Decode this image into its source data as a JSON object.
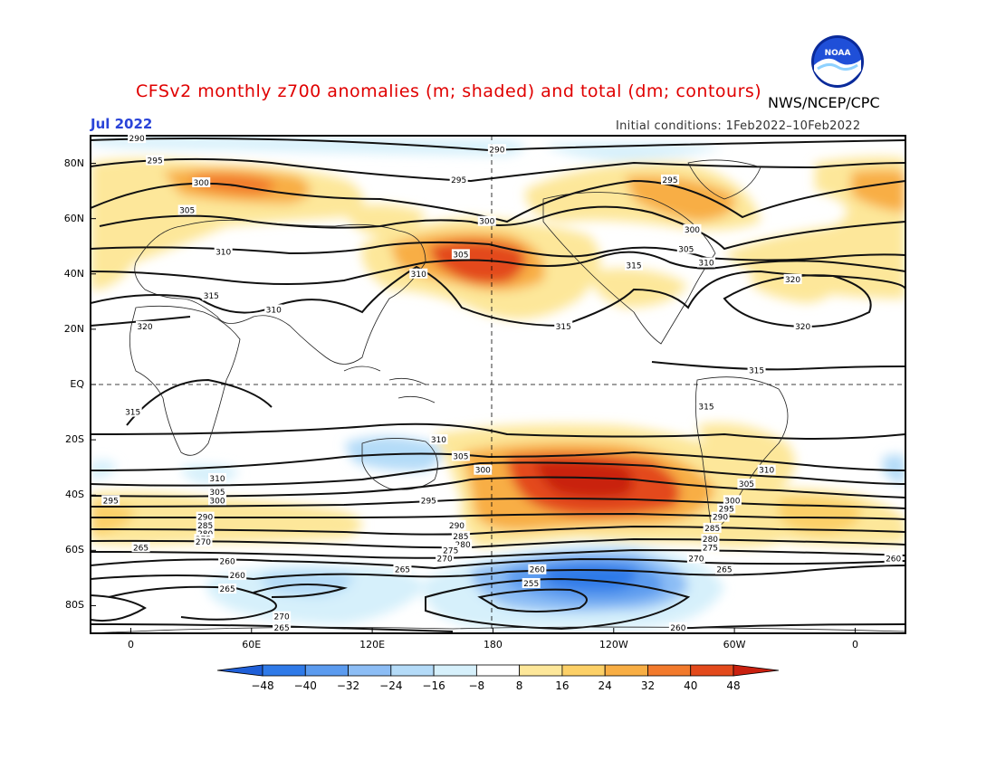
{
  "header": {
    "title": "CFSv2 monthly z700 anomalies (m; shaded) and total (dm; contours)",
    "agency": "NWS/NCEP/CPC",
    "month": "Jul 2022",
    "initial_conditions": "Initial conditions: 1Feb2022–10Feb2022",
    "logo_text": "NOAA"
  },
  "map": {
    "lat_labels": [
      {
        "text": "80N",
        "lat": 80
      },
      {
        "text": "60N",
        "lat": 60
      },
      {
        "text": "40N",
        "lat": 40
      },
      {
        "text": "20N",
        "lat": 20
      },
      {
        "text": "EQ",
        "lat": 0
      },
      {
        "text": "20S",
        "lat": -20
      },
      {
        "text": "40S",
        "lat": -40
      },
      {
        "text": "60S",
        "lat": -60
      },
      {
        "text": "80S",
        "lat": -80
      }
    ],
    "lon_labels": [
      {
        "text": "0",
        "lon": 0
      },
      {
        "text": "60E",
        "lon": 60
      },
      {
        "text": "120E",
        "lon": 120
      },
      {
        "text": "180",
        "lon": 180
      },
      {
        "text": "120W",
        "lon": 240
      },
      {
        "text": "60W",
        "lon": 300
      },
      {
        "text": "0",
        "lon": 360
      }
    ],
    "contour_labels": [
      {
        "text": "290",
        "lon": 3,
        "lat": 89
      },
      {
        "text": "290",
        "lon": 182,
        "lat": 85
      },
      {
        "text": "295",
        "lon": 12,
        "lat": 81
      },
      {
        "text": "300",
        "lon": 35,
        "lat": 73
      },
      {
        "text": "295",
        "lon": 163,
        "lat": 74
      },
      {
        "text": "305",
        "lon": 28,
        "lat": 63
      },
      {
        "text": "295",
        "lon": 268,
        "lat": 74
      },
      {
        "text": "300",
        "lon": 177,
        "lat": 59
      },
      {
        "text": "300",
        "lon": 279,
        "lat": 56
      },
      {
        "text": "310",
        "lon": 46,
        "lat": 48
      },
      {
        "text": "305",
        "lon": 164,
        "lat": 47
      },
      {
        "text": "305",
        "lon": 276,
        "lat": 49
      },
      {
        "text": "310",
        "lon": 286,
        "lat": 44
      },
      {
        "text": "315",
        "lon": 250,
        "lat": 43
      },
      {
        "text": "310",
        "lon": 143,
        "lat": 40
      },
      {
        "text": "320",
        "lon": 329,
        "lat": 38
      },
      {
        "text": "315",
        "lon": 40,
        "lat": 32
      },
      {
        "text": "310",
        "lon": 71,
        "lat": 27
      },
      {
        "text": "320",
        "lon": 7,
        "lat": 21
      },
      {
        "text": "315",
        "lon": 215,
        "lat": 21
      },
      {
        "text": "320",
        "lon": 334,
        "lat": 21
      },
      {
        "text": "315",
        "lon": 311,
        "lat": 5
      },
      {
        "text": "315",
        "lon": 286,
        "lat": -8
      },
      {
        "text": "315",
        "lon": 1,
        "lat": -10
      },
      {
        "text": "310",
        "lon": 153,
        "lat": -20
      },
      {
        "text": "305",
        "lon": 164,
        "lat": -26
      },
      {
        "text": "300",
        "lon": 175,
        "lat": -31
      },
      {
        "text": "310",
        "lon": 316,
        "lat": -31
      },
      {
        "text": "310",
        "lon": 43,
        "lat": -34
      },
      {
        "text": "305",
        "lon": 306,
        "lat": -36
      },
      {
        "text": "305",
        "lon": 43,
        "lat": -39
      },
      {
        "text": "300",
        "lon": 43,
        "lat": -42
      },
      {
        "text": "295",
        "lon": -10,
        "lat": -42
      },
      {
        "text": "295",
        "lon": 148,
        "lat": -42
      },
      {
        "text": "300",
        "lon": 299,
        "lat": -42
      },
      {
        "text": "295",
        "lon": 296,
        "lat": -45
      },
      {
        "text": "290",
        "lon": 37,
        "lat": -48
      },
      {
        "text": "290",
        "lon": 293,
        "lat": -48
      },
      {
        "text": "285",
        "lon": 37,
        "lat": -51
      },
      {
        "text": "290",
        "lon": 162,
        "lat": -51
      },
      {
        "text": "285",
        "lon": 289,
        "lat": -52
      },
      {
        "text": "280",
        "lon": 37,
        "lat": -54
      },
      {
        "text": "280",
        "lon": 288,
        "lat": -56
      },
      {
        "text": "285",
        "lon": 164,
        "lat": -55
      },
      {
        "text": "275",
        "lon": 36,
        "lat": -56
      },
      {
        "text": "280",
        "lon": 165,
        "lat": -58
      },
      {
        "text": "270",
        "lon": 36,
        "lat": -57
      },
      {
        "text": "275",
        "lon": 159,
        "lat": -60
      },
      {
        "text": "275",
        "lon": 288,
        "lat": -59
      },
      {
        "text": "265",
        "lon": 5,
        "lat": -59
      },
      {
        "text": "270",
        "lon": 156,
        "lat": -63
      },
      {
        "text": "270",
        "lon": 281,
        "lat": -63
      },
      {
        "text": "260",
        "lon": 379,
        "lat": -63
      },
      {
        "text": "260",
        "lon": 48,
        "lat": -64
      },
      {
        "text": "265",
        "lon": 135,
        "lat": -67
      },
      {
        "text": "260",
        "lon": 202,
        "lat": -67
      },
      {
        "text": "265",
        "lon": 295,
        "lat": -67
      },
      {
        "text": "260",
        "lon": 53,
        "lat": -69
      },
      {
        "text": "255",
        "lon": 199,
        "lat": -72
      },
      {
        "text": "265",
        "lon": 48,
        "lat": -74
      },
      {
        "text": "270",
        "lon": 75,
        "lat": -84
      },
      {
        "text": "265",
        "lon": 75,
        "lat": -88
      },
      {
        "text": "260",
        "lon": 272,
        "lat": -88
      }
    ],
    "colors": {
      "neg48": "#1f5fd8",
      "neg40": "#2f7ae8",
      "neg32": "#5b9bef",
      "neg24": "#8cbdf5",
      "neg16": "#b4dbf8",
      "neg8": "#d6f0fb",
      "neutral": "#ffffff",
      "pos8": "#fde79a",
      "pos16": "#fcd067",
      "pos24": "#f8ae44",
      "pos32": "#f27a2c",
      "pos40": "#e34a1c",
      "pos48": "#c9200f"
    }
  },
  "colorbar": {
    "labels": [
      "−48",
      "−40",
      "−32",
      "−24",
      "−16",
      "−8",
      "8",
      "16",
      "24",
      "32",
      "40",
      "48"
    ],
    "colors": [
      "#1f5fd8",
      "#2f7ae8",
      "#5b9bef",
      "#8cbdf5",
      "#b4dbf8",
      "#d6f0fb",
      "#ffffff",
      "#fde79a",
      "#fcd067",
      "#f8ae44",
      "#f27a2c",
      "#e34a1c",
      "#c9200f"
    ]
  }
}
